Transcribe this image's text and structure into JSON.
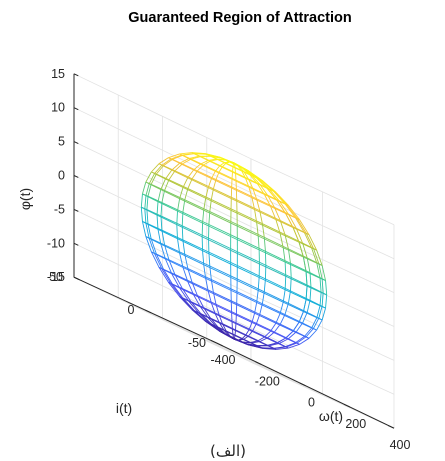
{
  "chart_data": {
    "type": "surface",
    "title": "Guaranteed Region of Attraction",
    "xlabel": "ω(t)",
    "ylabel": "i(t)",
    "zlabel": "φ(t)",
    "xlim": [
      -400,
      400
    ],
    "ylim": [
      -50,
      50
    ],
    "zlim": [
      -15,
      15
    ],
    "xticks": [
      "-400",
      "-200",
      "0",
      "200",
      "400"
    ],
    "yticks": [
      "-50",
      "0",
      "50"
    ],
    "zticks": [
      "-15",
      "-10",
      "-5",
      "0",
      "5",
      "10",
      "15"
    ],
    "grid": true,
    "colormap": "parula",
    "surface": {
      "shape": "ellipsoid",
      "center": [
        0,
        0,
        0
      ],
      "semi_axes": [
        330,
        40,
        13
      ]
    }
  },
  "caption": "(الف)"
}
